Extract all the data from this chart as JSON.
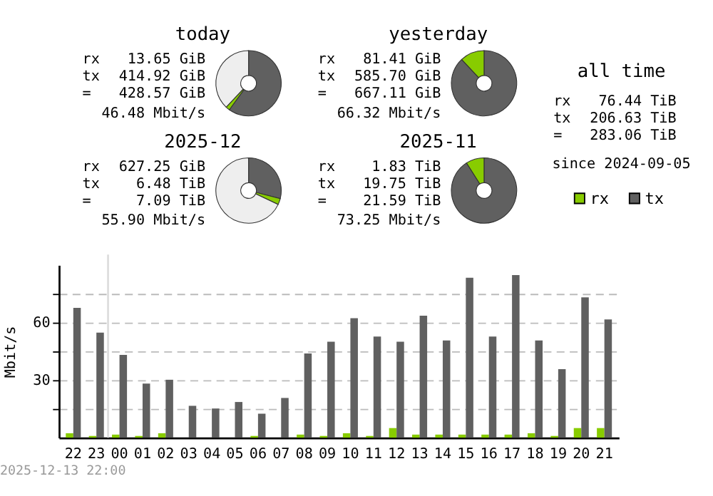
{
  "chart_data": [
    {
      "type": "donut",
      "title": "today",
      "categories": [
        null,
        null,
        null
      ],
      "values": [
        60,
        2,
        38
      ],
      "colors": [
        "#606060",
        "#88cc00",
        "#eeeeee"
      ],
      "annotations": [
        "rx",
        "13.65 GiB",
        "tx",
        "414.92 GiB",
        "=",
        "428.57 GiB",
        "46.48 Mbit/s"
      ]
    },
    {
      "type": "donut",
      "title": "yesterday",
      "categories": [
        null,
        null
      ],
      "values": [
        88,
        12
      ],
      "colors": [
        "#606060",
        "#88cc00"
      ],
      "annotations": [
        "rx",
        "81.41 GiB",
        "tx",
        "585.70 GiB",
        "=",
        "667.11 GiB",
        "66.32 Mbit/s"
      ]
    },
    {
      "type": "donut",
      "title": "2025-12",
      "categories": [
        null,
        null,
        null
      ],
      "values": [
        29,
        3,
        68
      ],
      "colors": [
        "#606060",
        "#88cc00",
        "#eeeeee"
      ],
      "annotations": [
        "rx",
        "627.25 GiB",
        "tx",
        "6.48 TiB",
        "=",
        "7.09 TiB",
        "55.90 Mbit/s"
      ]
    },
    {
      "type": "donut",
      "title": "2025-11",
      "categories": [
        null,
        null
      ],
      "values": [
        91,
        9
      ],
      "colors": [
        "#606060",
        "#88cc00"
      ],
      "annotations": [
        "rx",
        "1.83 TiB",
        "tx",
        "19.75 TiB",
        "=",
        "21.59 TiB",
        "73.25 Mbit/s"
      ]
    },
    {
      "type": "other",
      "title": "all time",
      "annotations": [
        "rx",
        "76.44 TiB",
        "tx",
        "206.63 TiB",
        "=",
        "283.06 TiB",
        "since 2024-09-05"
      ]
    },
    {
      "type": "bar",
      "categories": [
        "22",
        "23",
        "00",
        "01",
        "02",
        "03",
        "04",
        "05",
        "06",
        "07",
        "08",
        "09",
        "10",
        "11",
        "12",
        "13",
        "14",
        "15",
        "16",
        "17",
        "18",
        "19",
        "20",
        "21"
      ],
      "series": [
        {
          "name": "rx",
          "color": "#88cc00",
          "values": [
            2.3,
            0.9,
            1.6,
            0.9,
            2.3,
            0,
            0,
            0,
            0.9,
            0,
            1.6,
            0.9,
            2.3,
            0.9,
            5.0,
            1.6,
            1.6,
            1.6,
            1.6,
            1.6,
            2.3,
            0.9,
            5.0,
            5.0
          ]
        },
        {
          "name": "tx",
          "color": "#606060",
          "values": [
            67.7,
            54.8,
            43.2,
            28.2,
            30.2,
            16.6,
            15.2,
            18.6,
            12.5,
            20.7,
            43.9,
            50.0,
            62.3,
            52.7,
            50.0,
            63.6,
            50.7,
            83.4,
            52.7,
            84.8,
            50.7,
            35.7,
            73.2,
            61.6
          ]
        }
      ],
      "ylabel": "Mbit/s",
      "ylim": [
        0,
        90
      ],
      "yticks": [
        {
          "value": 15,
          "label": null
        },
        30,
        {
          "value": 45,
          "label": null
        },
        60,
        {
          "value": 75,
          "label": null
        }
      ],
      "grid": "y",
      "legend": "top right",
      "ref_lines": [
        {
          "axis": "x",
          "value": "00",
          "color": "#dddddd"
        }
      ],
      "annotations": [
        "2025-12-13 22:00"
      ]
    }
  ]
}
